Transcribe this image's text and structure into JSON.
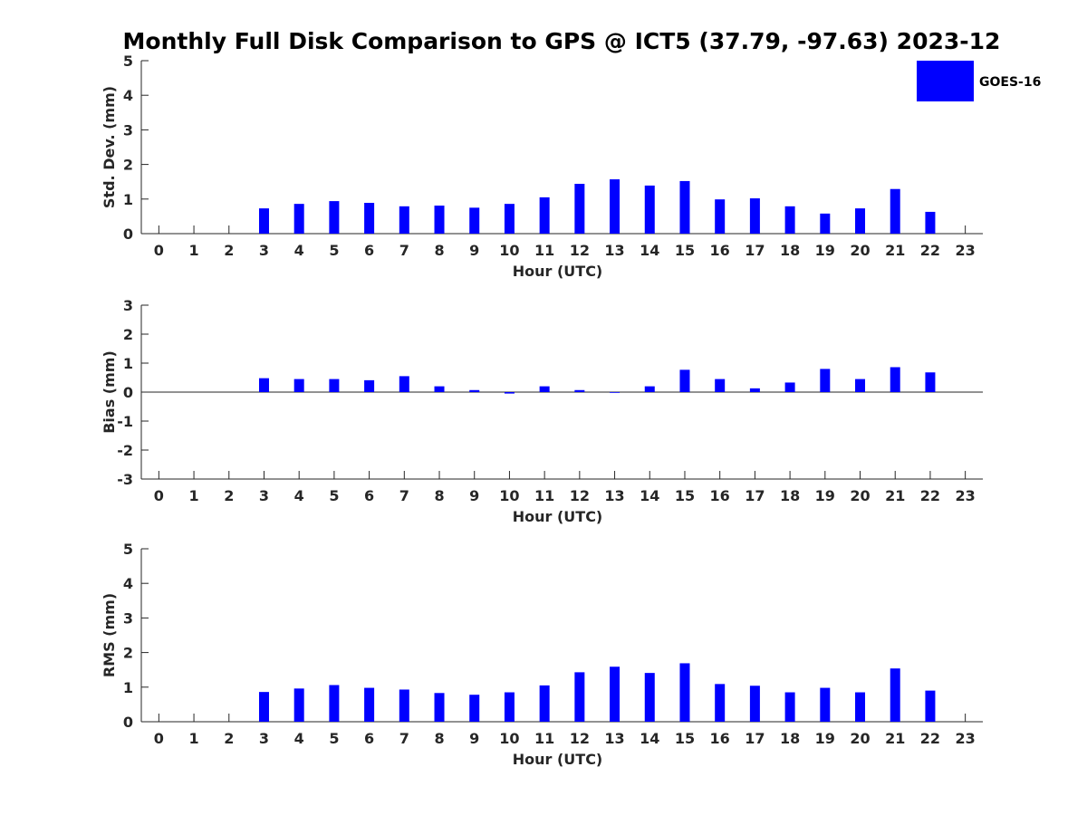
{
  "title": "Monthly Full Disk Comparison to GPS @ ICT5 (37.79, -97.63) 2023-12",
  "legend": {
    "label": "GOES-16",
    "color": "#0000ff",
    "placement": "top-right"
  },
  "chart_data": [
    {
      "type": "bar",
      "ylabel": "Std. Dev. (mm)",
      "xlabel": "Hour (UTC)",
      "ylim": [
        0,
        5
      ],
      "yticks": [
        0,
        1,
        2,
        3,
        4,
        5
      ],
      "categories": [
        "0",
        "1",
        "2",
        "3",
        "4",
        "5",
        "6",
        "7",
        "8",
        "9",
        "10",
        "11",
        "12",
        "13",
        "14",
        "15",
        "16",
        "17",
        "18",
        "19",
        "20",
        "21",
        "22",
        "23"
      ],
      "series": [
        {
          "name": "GOES-16",
          "color": "#0000ff",
          "values": [
            null,
            null,
            null,
            0.73,
            0.86,
            0.94,
            0.89,
            0.79,
            0.81,
            0.75,
            0.86,
            1.05,
            1.44,
            1.57,
            1.39,
            1.52,
            0.99,
            1.02,
            0.79,
            0.58,
            0.73,
            1.29,
            0.63,
            null
          ]
        }
      ]
    },
    {
      "type": "bar",
      "ylabel": "Bias (mm)",
      "xlabel": "Hour (UTC)",
      "ylim": [
        -3,
        3
      ],
      "yticks": [
        -3,
        -2,
        -1,
        0,
        1,
        2,
        3
      ],
      "zero_line": true,
      "categories": [
        "0",
        "1",
        "2",
        "3",
        "4",
        "5",
        "6",
        "7",
        "8",
        "9",
        "10",
        "11",
        "12",
        "13",
        "14",
        "15",
        "16",
        "17",
        "18",
        "19",
        "20",
        "21",
        "22",
        "23"
      ],
      "series": [
        {
          "name": "GOES-16",
          "color": "#0000ff",
          "values": [
            null,
            null,
            null,
            0.48,
            0.45,
            0.45,
            0.41,
            0.55,
            0.2,
            0.07,
            -0.05,
            0.2,
            0.07,
            0.0,
            0.2,
            0.77,
            0.45,
            0.13,
            0.33,
            0.8,
            0.45,
            0.86,
            0.68,
            null
          ]
        }
      ]
    },
    {
      "type": "bar",
      "ylabel": "RMS (mm)",
      "xlabel": "Hour (UTC)",
      "ylim": [
        0,
        5
      ],
      "yticks": [
        0,
        1,
        2,
        3,
        4,
        5
      ],
      "categories": [
        "0",
        "1",
        "2",
        "3",
        "4",
        "5",
        "6",
        "7",
        "8",
        "9",
        "10",
        "11",
        "12",
        "13",
        "14",
        "15",
        "16",
        "17",
        "18",
        "19",
        "20",
        "21",
        "22",
        "23"
      ],
      "series": [
        {
          "name": "GOES-16",
          "color": "#0000ff",
          "values": [
            null,
            null,
            null,
            0.86,
            0.96,
            1.06,
            0.98,
            0.93,
            0.83,
            0.78,
            0.85,
            1.05,
            1.43,
            1.59,
            1.41,
            1.69,
            1.09,
            1.04,
            0.85,
            0.98,
            0.85,
            1.54,
            0.9,
            null
          ]
        }
      ]
    }
  ]
}
